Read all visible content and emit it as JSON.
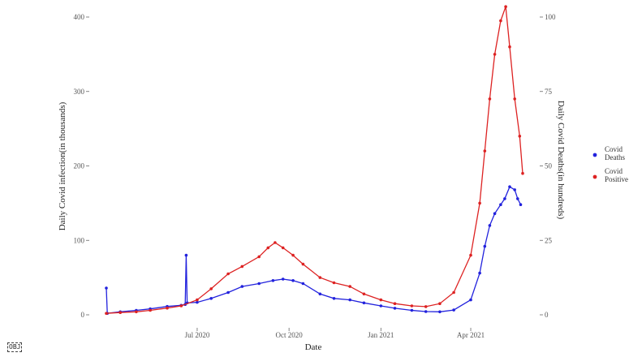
{
  "badge": "OBJ",
  "chart_data": {
    "type": "line",
    "xlabel": "Date",
    "ylabel_left": "Daily Covid infection(in thousands)",
    "ylabel_right": "Daily Covid Deaths(in hundreds)",
    "x_ticks": [
      "Jul 2020",
      "Oct 2020",
      "Jan 2021",
      "Apr 2021"
    ],
    "x_tick_dates": [
      "2020-07-01",
      "2020-10-01",
      "2021-01-01",
      "2021-04-01"
    ],
    "x_range": [
      "2020-04-01",
      "2021-05-23"
    ],
    "left_axis": {
      "ticks": [
        "0",
        "100",
        "200",
        "300",
        "400"
      ],
      "ylim": [
        0,
        400
      ]
    },
    "right_axis": {
      "ticks": [
        "0",
        "25",
        "50",
        "75",
        "100"
      ],
      "ylim": [
        0,
        100
      ]
    },
    "grid": false,
    "legend_position": "right",
    "series": [
      {
        "name": "Covid Deaths",
        "axis": "right",
        "color": "#2222dd",
        "points": [
          [
            "2020-04-01",
            9
          ],
          [
            "2020-04-02",
            0.5
          ],
          [
            "2020-04-15",
            1
          ],
          [
            "2020-05-01",
            1.5
          ],
          [
            "2020-05-15",
            2
          ],
          [
            "2020-06-01",
            2.8
          ],
          [
            "2020-06-15",
            3.2
          ],
          [
            "2020-06-19",
            3.5
          ],
          [
            "2020-06-20",
            20
          ],
          [
            "2020-06-21",
            4
          ],
          [
            "2020-07-01",
            4.2
          ],
          [
            "2020-07-15",
            5.5
          ],
          [
            "2020-08-01",
            7.5
          ],
          [
            "2020-08-15",
            9.5
          ],
          [
            "2020-09-01",
            10.5
          ],
          [
            "2020-09-15",
            11.5
          ],
          [
            "2020-09-25",
            12
          ],
          [
            "2020-10-05",
            11.5
          ],
          [
            "2020-10-15",
            10.5
          ],
          [
            "2020-11-01",
            7
          ],
          [
            "2020-11-15",
            5.5
          ],
          [
            "2020-12-01",
            5
          ],
          [
            "2020-12-15",
            4
          ],
          [
            "2021-01-01",
            3
          ],
          [
            "2021-01-15",
            2.2
          ],
          [
            "2021-02-01",
            1.5
          ],
          [
            "2021-02-15",
            1.1
          ],
          [
            "2021-03-01",
            1
          ],
          [
            "2021-03-15",
            1.6
          ],
          [
            "2021-04-01",
            5
          ],
          [
            "2021-04-10",
            14
          ],
          [
            "2021-04-15",
            23
          ],
          [
            "2021-04-20",
            30
          ],
          [
            "2021-04-25",
            34
          ],
          [
            "2021-05-01",
            37
          ],
          [
            "2021-05-05",
            39
          ],
          [
            "2021-05-10",
            43
          ],
          [
            "2021-05-15",
            42
          ],
          [
            "2021-05-18",
            39
          ],
          [
            "2021-05-21",
            37
          ]
        ]
      },
      {
        "name": "Covid Positive",
        "axis": "left",
        "color": "#dd2222",
        "points": [
          [
            "2020-04-01",
            2
          ],
          [
            "2020-04-15",
            3
          ],
          [
            "2020-05-01",
            4
          ],
          [
            "2020-05-15",
            6
          ],
          [
            "2020-06-01",
            9
          ],
          [
            "2020-06-15",
            12
          ],
          [
            "2020-07-01",
            20
          ],
          [
            "2020-07-15",
            35
          ],
          [
            "2020-08-01",
            55
          ],
          [
            "2020-08-15",
            65
          ],
          [
            "2020-09-01",
            78
          ],
          [
            "2020-09-10",
            90
          ],
          [
            "2020-09-17",
            97
          ],
          [
            "2020-09-25",
            90
          ],
          [
            "2020-10-05",
            80
          ],
          [
            "2020-10-15",
            68
          ],
          [
            "2020-11-01",
            50
          ],
          [
            "2020-11-15",
            43
          ],
          [
            "2020-12-01",
            38
          ],
          [
            "2020-12-15",
            28
          ],
          [
            "2021-01-01",
            20
          ],
          [
            "2021-01-15",
            15
          ],
          [
            "2021-02-01",
            12
          ],
          [
            "2021-02-15",
            11
          ],
          [
            "2021-03-01",
            15
          ],
          [
            "2021-03-15",
            30
          ],
          [
            "2021-04-01",
            80
          ],
          [
            "2021-04-10",
            150
          ],
          [
            "2021-04-15",
            220
          ],
          [
            "2021-04-20",
            290
          ],
          [
            "2021-04-25",
            350
          ],
          [
            "2021-05-01",
            395
          ],
          [
            "2021-05-06",
            414
          ],
          [
            "2021-05-10",
            360
          ],
          [
            "2021-05-15",
            290
          ],
          [
            "2021-05-20",
            240
          ],
          [
            "2021-05-23",
            190
          ]
        ]
      }
    ]
  }
}
